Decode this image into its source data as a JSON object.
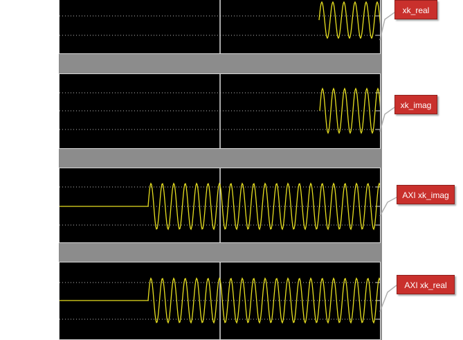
{
  "colors": {
    "background": "#000000",
    "signal": "#e8e020",
    "grid": "#bfbfbf",
    "separator": "#8c8c8c",
    "callout_fill": "#c9302c",
    "callout_text": "#ffffff"
  },
  "callouts": {
    "xk_real": "xk_real",
    "xk_imag": "xk_imag",
    "axi_xk_imag": "AXI xk_imag",
    "axi_xk_real": "AXI xk_real"
  },
  "traces": [
    {
      "label_key": "xk_real",
      "kind": "sine-burst",
      "starts_at": "right-end"
    },
    {
      "label_key": "xk_imag",
      "kind": "sine-burst",
      "starts_at": "right-end"
    },
    {
      "label_key": "axi_xk_imag",
      "kind": "sine",
      "starts_at": "after-flat-line"
    },
    {
      "label_key": "axi_xk_real",
      "kind": "sine",
      "starts_at": "after-flat-line"
    }
  ]
}
